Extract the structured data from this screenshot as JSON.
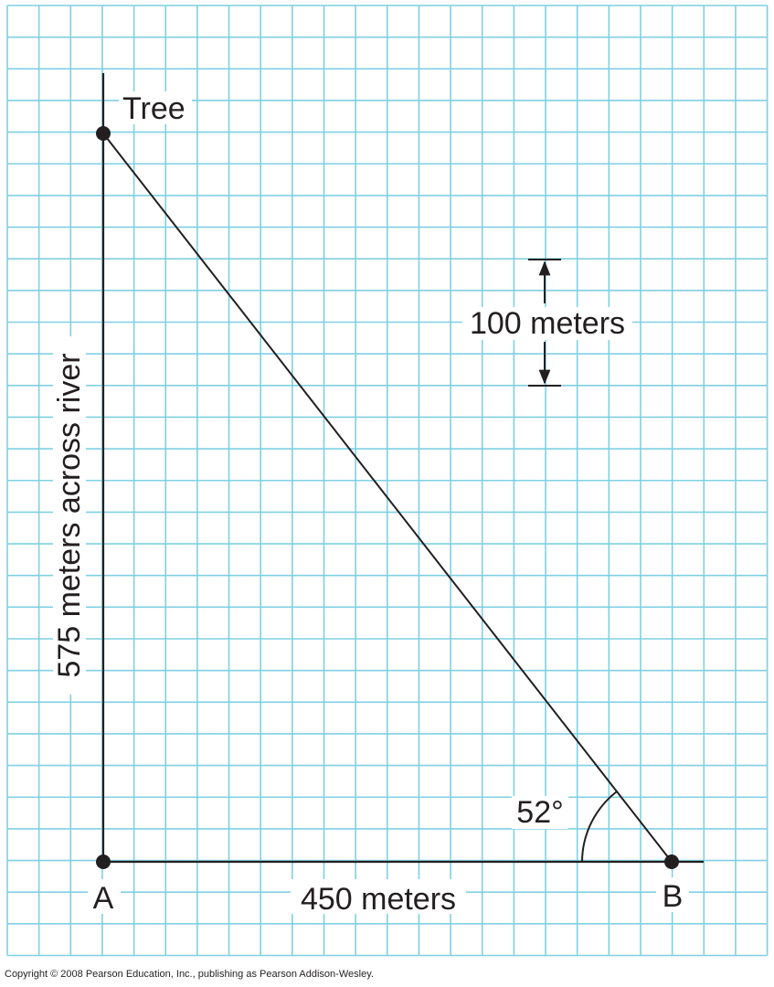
{
  "diagram": {
    "labels": {
      "tree": "Tree",
      "point_a": "A",
      "point_b": "B",
      "base": "450 meters",
      "height": "575 meters across river",
      "scale": "100 meters",
      "angle": "52°"
    },
    "footer": "Copyright © 2008 Pearson Education, Inc., publishing as Pearson Addison-Wesley."
  }
}
